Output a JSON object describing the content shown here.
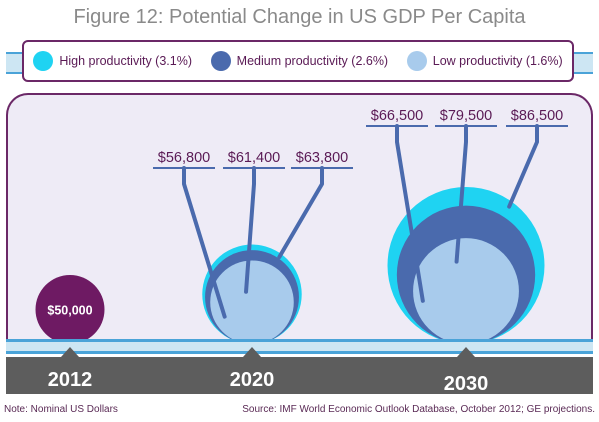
{
  "title": "Figure 12: Potential Change in US GDP Per Capita",
  "legend": [
    {
      "label": "High productivity (3.1%)",
      "color": "#1fd3f2"
    },
    {
      "label": "Medium productivity (2.6%)",
      "color": "#4a6aad"
    },
    {
      "label": "Low productivity (1.6%)",
      "color": "#a8cbec"
    }
  ],
  "note": "Note: Nominal US Dollars",
  "source": "Source: IMF World Economic Outlook Database, October 2012; GE projections.",
  "chart_data": {
    "type": "bubble",
    "unit": "US dollars",
    "categories": [
      "2012",
      "2020",
      "2030"
    ],
    "base": {
      "year": "2012",
      "value": 50000,
      "label": "$50,000",
      "color": "#6e1a63"
    },
    "series": [
      {
        "name": "High productivity (3.1%)",
        "values": [
          null,
          63800,
          86500
        ],
        "labels": [
          "",
          "$63,800",
          "$86,500"
        ]
      },
      {
        "name": "Medium productivity (2.6%)",
        "values": [
          null,
          61400,
          79500
        ],
        "labels": [
          "",
          "$61,400",
          "$79,500"
        ]
      },
      {
        "name": "Low productivity (1.6%)",
        "values": [
          null,
          56800,
          66500
        ],
        "labels": [
          "",
          "$56,800",
          "$66,500"
        ]
      }
    ]
  }
}
